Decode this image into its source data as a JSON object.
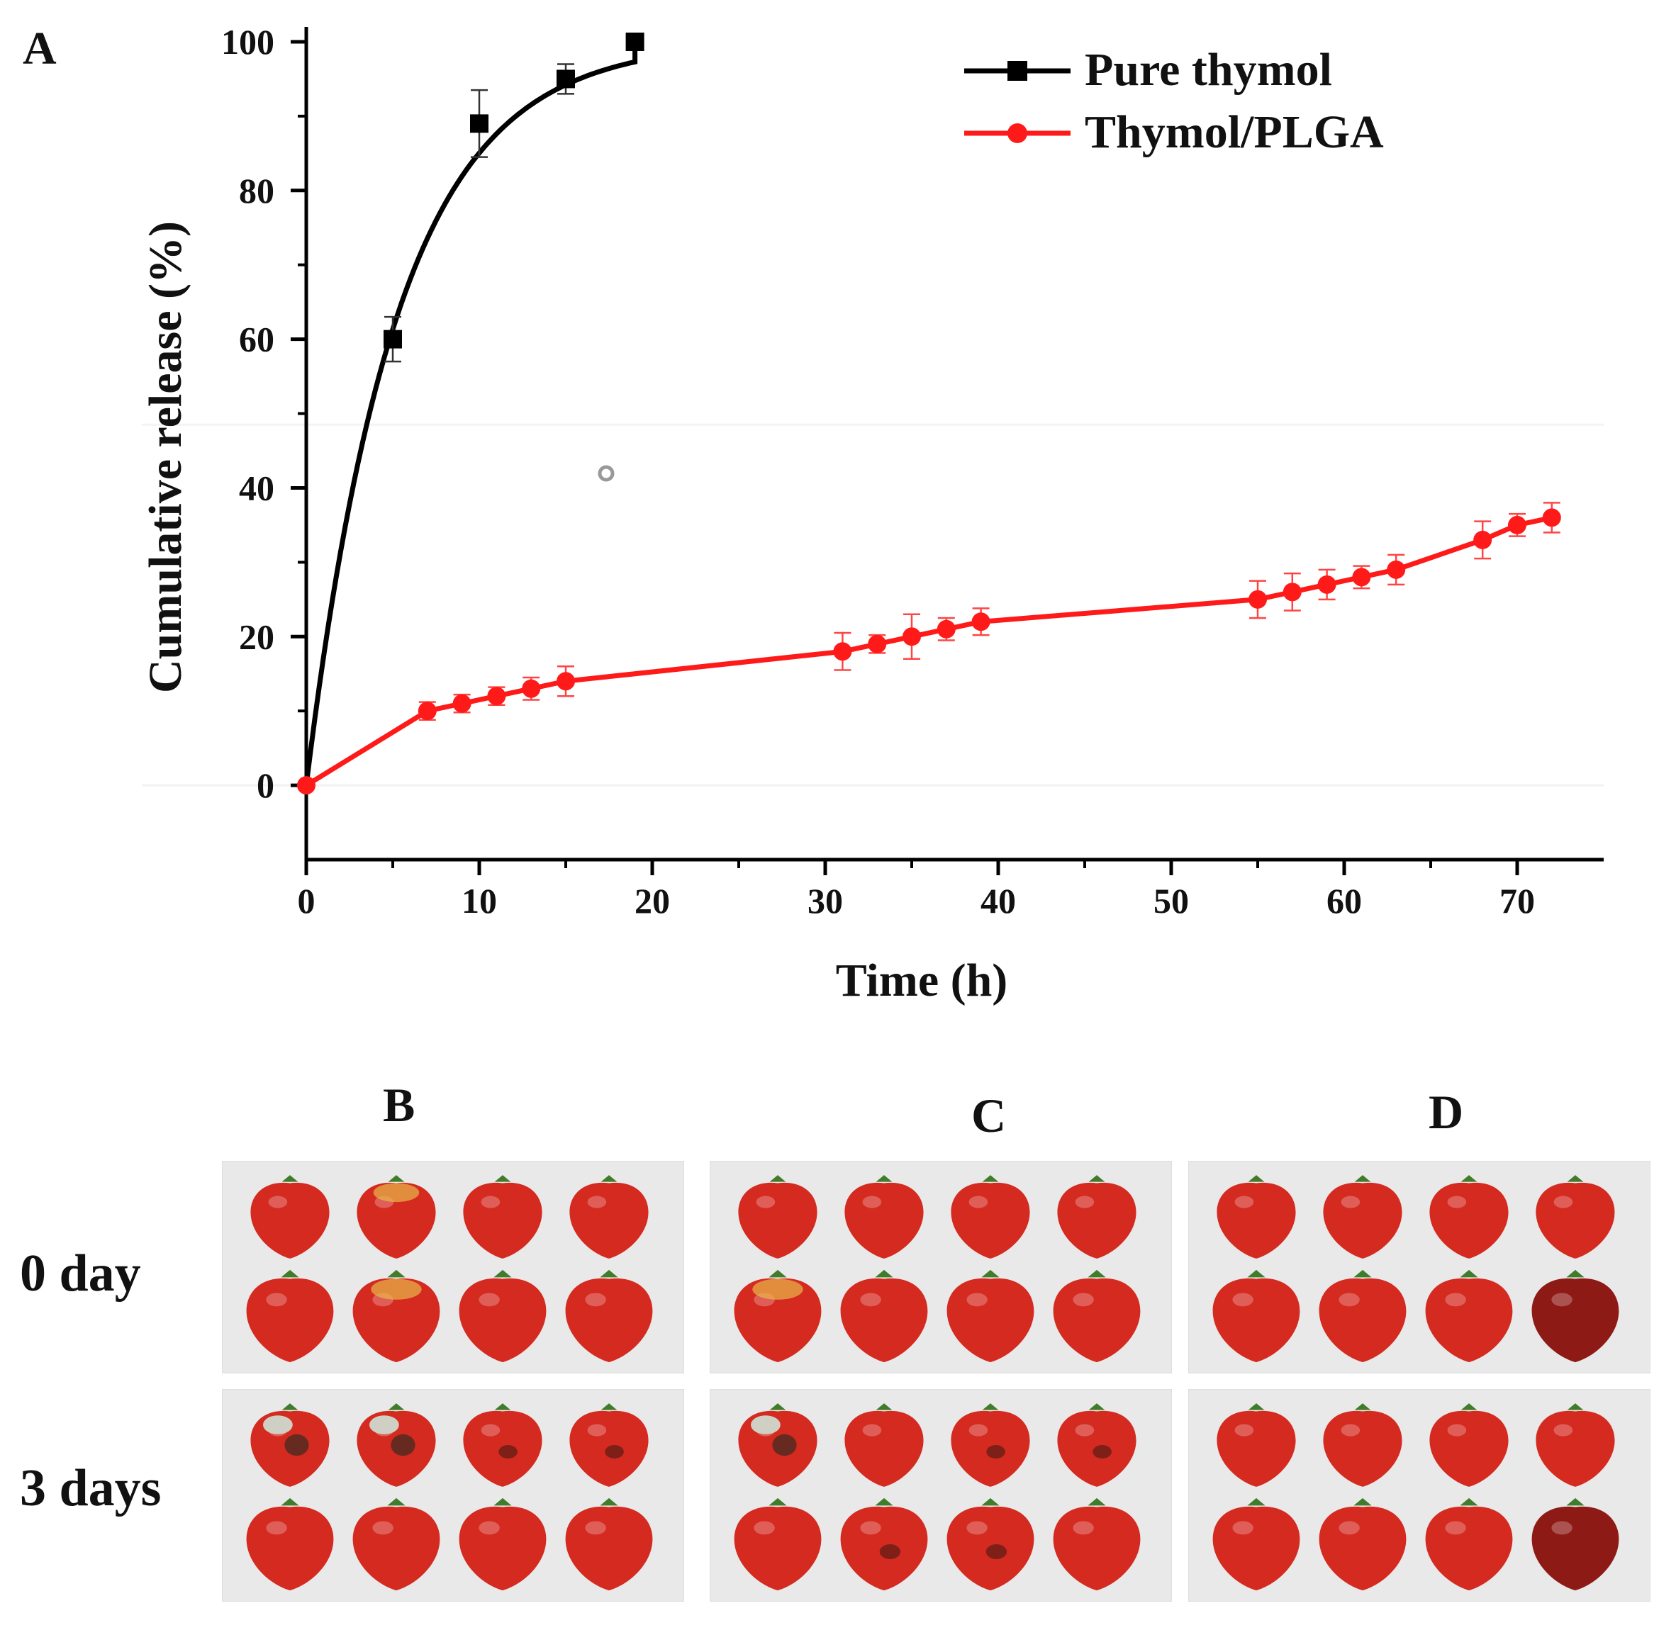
{
  "chart_data": {
    "type": "line",
    "panel_label": "A",
    "xlabel": "Time (h)",
    "ylabel": "Cumulative release (%)",
    "xlim": [
      0,
      75
    ],
    "ylim": [
      -10,
      102
    ],
    "xticks": [
      0,
      10,
      20,
      30,
      40,
      50,
      60,
      70
    ],
    "yticks": [
      0,
      20,
      40,
      60,
      80,
      100
    ],
    "legend_position": "top-right",
    "series": [
      {
        "name": "Pure thymol",
        "color": "#000000",
        "marker": "square",
        "x": [
          0,
          5,
          10,
          15,
          19
        ],
        "y": [
          0,
          60,
          89,
          95,
          100
        ],
        "error": [
          0,
          3,
          4.5,
          2,
          1
        ]
      },
      {
        "name": "Thymol/PLGA",
        "color": "#ff1a1a",
        "marker": "circle",
        "x": [
          0,
          7,
          9,
          11,
          13,
          15,
          31,
          33,
          35,
          37,
          39,
          55,
          57,
          59,
          61,
          63,
          68,
          70,
          72
        ],
        "y": [
          0,
          10,
          11,
          12,
          13,
          14,
          18,
          19,
          20,
          21,
          22,
          25,
          26,
          27,
          28,
          29,
          33,
          35,
          36
        ],
        "error": [
          0,
          1.2,
          1.2,
          1.2,
          1.5,
          2,
          2.5,
          1.2,
          3,
          1.5,
          1.8,
          2.5,
          2.5,
          2,
          1.5,
          2,
          2.5,
          1.5,
          2
        ]
      }
    ]
  },
  "photos": {
    "columns": [
      "B",
      "C",
      "D"
    ],
    "rows": [
      "0 day",
      "3 days"
    ]
  },
  "colors": {
    "strawberry": "#d42a20",
    "strawberry_dark": "#8e1a16",
    "mold": "#cfcfc4",
    "leaf": "#3f7d2a"
  }
}
